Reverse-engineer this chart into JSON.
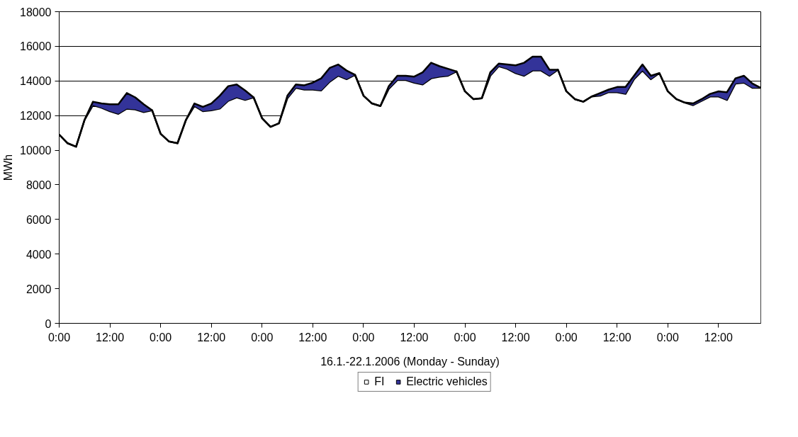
{
  "chart_data": {
    "type": "area",
    "stacked": true,
    "xlabel": "16.1.-22.1.2006 (Monday - Sunday)",
    "ylabel": "MWh",
    "x": [
      "2006-01-16T00:00",
      "2006-01-16T02:00",
      "2006-01-16T04:00",
      "2006-01-16T06:00",
      "2006-01-16T08:00",
      "2006-01-16T10:00",
      "2006-01-16T12:00",
      "2006-01-16T14:00",
      "2006-01-16T16:00",
      "2006-01-16T18:00",
      "2006-01-16T20:00",
      "2006-01-16T22:00",
      "2006-01-17T00:00",
      "2006-01-17T02:00",
      "2006-01-17T04:00",
      "2006-01-17T06:00",
      "2006-01-17T08:00",
      "2006-01-17T10:00",
      "2006-01-17T12:00",
      "2006-01-17T14:00",
      "2006-01-17T16:00",
      "2006-01-17T18:00",
      "2006-01-17T20:00",
      "2006-01-17T22:00",
      "2006-01-18T00:00",
      "2006-01-18T02:00",
      "2006-01-18T04:00",
      "2006-01-18T06:00",
      "2006-01-18T08:00",
      "2006-01-18T10:00",
      "2006-01-18T12:00",
      "2006-01-18T14:00",
      "2006-01-18T16:00",
      "2006-01-18T18:00",
      "2006-01-18T20:00",
      "2006-01-18T22:00",
      "2006-01-19T00:00",
      "2006-01-19T02:00",
      "2006-01-19T04:00",
      "2006-01-19T06:00",
      "2006-01-19T08:00",
      "2006-01-19T10:00",
      "2006-01-19T12:00",
      "2006-01-19T14:00",
      "2006-01-19T16:00",
      "2006-01-19T18:00",
      "2006-01-19T20:00",
      "2006-01-19T22:00",
      "2006-01-20T00:00",
      "2006-01-20T02:00",
      "2006-01-20T04:00",
      "2006-01-20T06:00",
      "2006-01-20T08:00",
      "2006-01-20T10:00",
      "2006-01-20T12:00",
      "2006-01-20T14:00",
      "2006-01-20T16:00",
      "2006-01-20T18:00",
      "2006-01-20T20:00",
      "2006-01-20T22:00",
      "2006-01-21T00:00",
      "2006-01-21T02:00",
      "2006-01-21T04:00",
      "2006-01-21T06:00",
      "2006-01-21T08:00",
      "2006-01-21T10:00",
      "2006-01-21T12:00",
      "2006-01-21T14:00",
      "2006-01-21T16:00",
      "2006-01-21T18:00",
      "2006-01-21T20:00",
      "2006-01-21T22:00",
      "2006-01-22T00:00",
      "2006-01-22T02:00",
      "2006-01-22T04:00",
      "2006-01-22T06:00",
      "2006-01-22T08:00",
      "2006-01-22T10:00",
      "2006-01-22T12:00",
      "2006-01-22T14:00",
      "2006-01-22T16:00",
      "2006-01-22T18:00",
      "2006-01-22T20:00",
      "2006-01-22T22:00"
    ],
    "series": [
      {
        "name": "FI",
        "color": "#ffffff",
        "values": [
          10900,
          10400,
          10200,
          11750,
          12600,
          12450,
          12250,
          12100,
          12400,
          12350,
          12200,
          12300,
          10950,
          10500,
          10400,
          11750,
          12550,
          12250,
          12300,
          12400,
          12850,
          13050,
          12900,
          13050,
          11850,
          11350,
          11550,
          13000,
          13600,
          13500,
          13500,
          13450,
          13950,
          14300,
          14100,
          14350,
          13150,
          12700,
          12550,
          13550,
          14050,
          14050,
          13900,
          13800,
          14150,
          14250,
          14300,
          14550,
          13400,
          12950,
          13000,
          14300,
          14850,
          14700,
          14450,
          14300,
          14600,
          14600,
          14300,
          14650,
          13400,
          12950,
          12800,
          13100,
          13150,
          13350,
          13350,
          13250,
          14100,
          14600,
          14100,
          14450,
          13400,
          12950,
          12750,
          12600,
          12850,
          13100,
          13100,
          12900,
          13850,
          13900,
          13600,
          13600
        ]
      },
      {
        "name": "Electric vehicles",
        "color": "#333399",
        "values": [
          0,
          0,
          0,
          0,
          200,
          250,
          400,
          550,
          900,
          700,
          450,
          0,
          0,
          0,
          0,
          0,
          150,
          250,
          400,
          750,
          850,
          750,
          550,
          0,
          0,
          0,
          0,
          150,
          200,
          250,
          400,
          700,
          800,
          650,
          500,
          0,
          0,
          0,
          0,
          150,
          250,
          250,
          350,
          700,
          900,
          600,
          400,
          0,
          0,
          0,
          0,
          200,
          150,
          250,
          450,
          750,
          800,
          800,
          350,
          0,
          0,
          0,
          0,
          0,
          150,
          150,
          300,
          400,
          200,
          350,
          200,
          0,
          0,
          0,
          0,
          100,
          100,
          150,
          300,
          450,
          300,
          400,
          250,
          0
        ]
      }
    ],
    "xlim": [
      "2006-01-16T00:00",
      "2006-01-22T22:00"
    ],
    "xticks": [
      {
        "value": "2006-01-16T00:00",
        "label": "0:00"
      },
      {
        "value": "2006-01-16T12:00",
        "label": "12:00"
      },
      {
        "value": "2006-01-17T00:00",
        "label": "0:00"
      },
      {
        "value": "2006-01-17T12:00",
        "label": "12:00"
      },
      {
        "value": "2006-01-18T00:00",
        "label": "0:00"
      },
      {
        "value": "2006-01-18T12:00",
        "label": "12:00"
      },
      {
        "value": "2006-01-19T00:00",
        "label": "0:00"
      },
      {
        "value": "2006-01-19T12:00",
        "label": "12:00"
      },
      {
        "value": "2006-01-20T00:00",
        "label": "0:00"
      },
      {
        "value": "2006-01-20T12:00",
        "label": "12:00"
      },
      {
        "value": "2006-01-21T00:00",
        "label": "0:00"
      },
      {
        "value": "2006-01-21T12:00",
        "label": "12:00"
      },
      {
        "value": "2006-01-22T00:00",
        "label": "0:00"
      },
      {
        "value": "2006-01-22T12:00",
        "label": "12:00"
      }
    ],
    "ylim": [
      0,
      18000
    ],
    "yticks": [
      0,
      2000,
      4000,
      6000,
      8000,
      10000,
      12000,
      14000,
      16000,
      18000
    ],
    "grid": "y",
    "legend": "bottom"
  }
}
